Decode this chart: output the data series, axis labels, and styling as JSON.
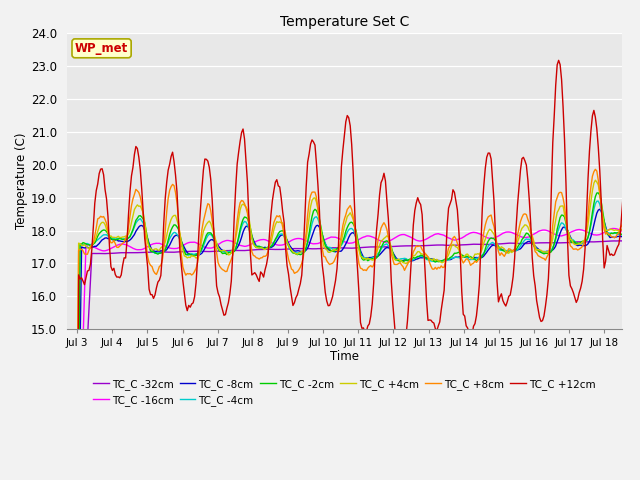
{
  "title": "Temperature Set C",
  "xlabel": "Time",
  "ylabel": "Temperature (C)",
  "ylim": [
    15.0,
    24.0
  ],
  "yticks": [
    15.0,
    16.0,
    17.0,
    18.0,
    19.0,
    20.0,
    21.0,
    22.0,
    23.0,
    24.0
  ],
  "xtick_labels": [
    "Jul 3",
    "Jul 4",
    "Jul 5",
    "Jul 6",
    "Jul 7",
    "Jul 8",
    "Jul 9",
    "Jul 10",
    "Jul 11",
    "Jul 12",
    "Jul 13",
    "Jul 14",
    "Jul 15",
    "Jul 16",
    "Jul 17",
    "Jul 18"
  ],
  "wp_met_label": "WP_met",
  "wp_met_color": "#cc0000",
  "wp_met_bg": "#ffffcc",
  "wp_met_border": "#aaa800",
  "plot_bg": "#e8e8e8",
  "fig_bg": "#f2f2f2",
  "series": [
    {
      "label": "TC_C -32cm",
      "color": "#9900cc"
    },
    {
      "label": "TC_C -16cm",
      "color": "#ff00ff"
    },
    {
      "label": "TC_C -8cm",
      "color": "#0000cc"
    },
    {
      "label": "TC_C -4cm",
      "color": "#00cccc"
    },
    {
      "label": "TC_C -2cm",
      "color": "#00cc00"
    },
    {
      "label": "TC_C +4cm",
      "color": "#cccc00"
    },
    {
      "label": "TC_C +8cm",
      "color": "#ff8800"
    },
    {
      "label": "TC_C +12cm",
      "color": "#cc0000"
    }
  ]
}
